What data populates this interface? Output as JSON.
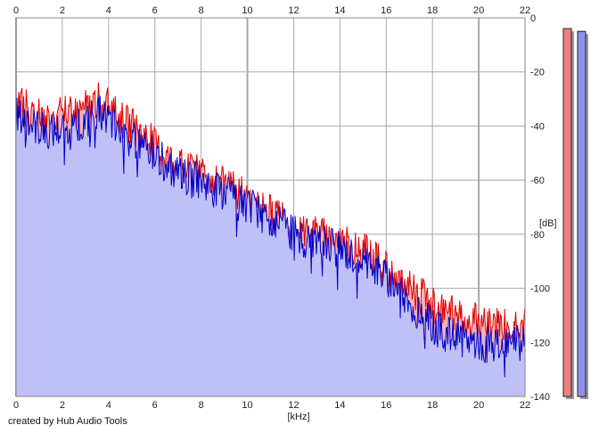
{
  "footer": {
    "credit": "created by Hub Audio Tools"
  },
  "chart_data": {
    "type": "area",
    "xlabel": "[kHz]",
    "ylabel": "[dB]",
    "xlim": [
      0,
      22
    ],
    "ylim": [
      -140,
      0
    ],
    "x_ticks": [
      0,
      2,
      4,
      6,
      8,
      10,
      12,
      14,
      16,
      18,
      20,
      22
    ],
    "y_ticks": [
      0,
      -20,
      -40,
      -60,
      -80,
      -100,
      -120,
      -140
    ],
    "y_tick_labels": [
      "0",
      "-20",
      "-40",
      "-60",
      "-80",
      "-100",
      "-120",
      "-140"
    ],
    "grid": true,
    "colors": {
      "red_line": "#e00000",
      "red_fill": "#f4b4b4",
      "blue_line": "#0000c8",
      "blue_fill": "#c0c0f8",
      "red_meter": "#f08080",
      "blue_meter": "#9090f0",
      "grid": "#a8a8a8"
    },
    "series": [
      {
        "color_key": "red",
        "x": [
          0,
          0.5,
          1,
          1.5,
          2,
          2.5,
          3,
          3.5,
          4,
          4.5,
          5,
          5.5,
          6,
          6.5,
          7,
          7.5,
          8,
          8.5,
          9,
          9.5,
          10,
          10.5,
          11,
          11.5,
          12,
          12.5,
          13,
          13.5,
          14,
          14.5,
          15,
          15.5,
          16,
          16.5,
          17,
          17.5,
          18,
          18.5,
          19,
          19.5,
          20,
          20.5,
          21,
          21.5,
          22
        ],
        "values": [
          -30,
          -33,
          -36,
          -38,
          -36,
          -35,
          -33,
          -30,
          -33,
          -37,
          -40,
          -43,
          -47,
          -51,
          -54,
          -57,
          -56,
          -60,
          -62,
          -64,
          -67,
          -70,
          -72,
          -74,
          -77,
          -79,
          -79,
          -81,
          -82,
          -84,
          -86,
          -89,
          -93,
          -97,
          -100,
          -103,
          -106,
          -108,
          -110,
          -111,
          -112,
          -113,
          -113,
          -112,
          -113
        ]
      },
      {
        "color_key": "blue",
        "x": [
          0,
          0.5,
          1,
          1.5,
          2,
          2.5,
          3,
          3.5,
          4,
          4.5,
          5,
          5.5,
          6,
          6.5,
          7,
          7.5,
          8,
          8.5,
          9,
          9.5,
          10,
          10.5,
          11,
          11.5,
          12,
          12.5,
          13,
          13.5,
          14,
          14.5,
          15,
          15.5,
          16,
          16.5,
          17,
          17.5,
          18,
          18.5,
          19,
          19.5,
          20,
          20.5,
          21,
          21.5,
          22
        ],
        "values": [
          -36,
          -38,
          -41,
          -42,
          -41,
          -40,
          -39,
          -35,
          -38,
          -42,
          -45,
          -47,
          -50,
          -54,
          -57,
          -60,
          -60,
          -63,
          -65,
          -67,
          -69,
          -72,
          -75,
          -77,
          -80,
          -82,
          -82,
          -84,
          -86,
          -88,
          -90,
          -93,
          -96,
          -100,
          -105,
          -110,
          -114,
          -117,
          -118,
          -119,
          -120,
          -121,
          -121,
          -120,
          -121
        ]
      }
    ],
    "meters": [
      {
        "color_key": "red",
        "top_db": -4
      },
      {
        "color_key": "blue",
        "top_db": -5
      }
    ]
  }
}
